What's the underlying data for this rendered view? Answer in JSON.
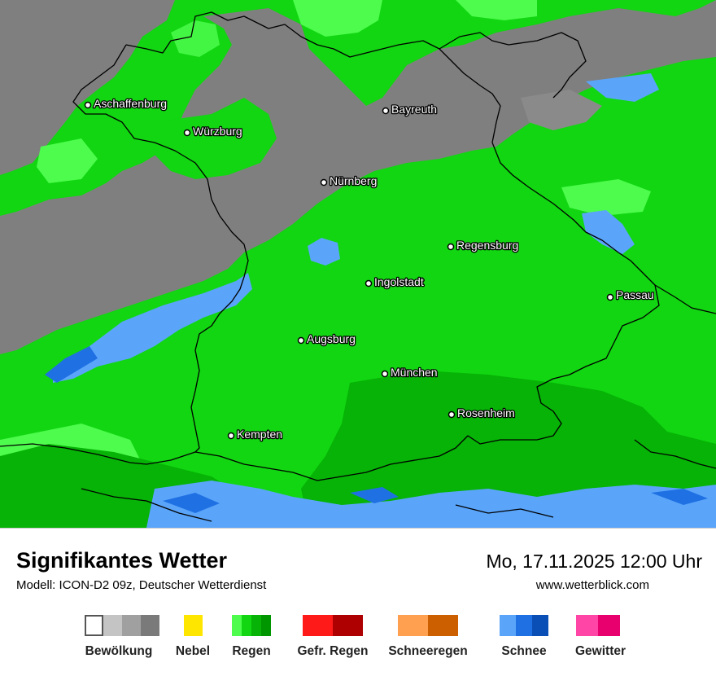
{
  "map": {
    "cities": [
      {
        "name": "Aschaffenburg"
      },
      {
        "name": "Würzburg"
      },
      {
        "name": "Bayreuth"
      },
      {
        "name": "Nürnberg"
      },
      {
        "name": "Regensburg"
      },
      {
        "name": "Ingolstadt"
      },
      {
        "name": "Passau"
      },
      {
        "name": "Augsburg"
      },
      {
        "name": "München"
      },
      {
        "name": "Rosenheim"
      },
      {
        "name": "Kempten"
      }
    ],
    "colors": {
      "cloud_dark": "#7f7f7f",
      "cloud_mid": "#8a8a8a",
      "rain_light": "#4dfc4d",
      "rain": "#11d611",
      "rain_dark": "#06b306",
      "snow_light": "#5aa5fa",
      "snow": "#1f70e3",
      "borders": "#000000"
    }
  },
  "header": {
    "title": "Signifikantes Wetter",
    "model": "Modell: ICON-D2 09z, Deutscher Wetterdienst",
    "datetime": "Mo, 17.11.2025 12:00 Uhr",
    "website": "www.wetterblick.com"
  },
  "legend": [
    {
      "label": "Bewölkung",
      "colors": [
        "#ffffff",
        "#c4c4c4",
        "#a0a0a0",
        "#7a7a7a"
      ]
    },
    {
      "label": "Nebel",
      "colors": [
        "#ffe600"
      ]
    },
    {
      "label": "Regen",
      "colors": [
        "#4dfc4d",
        "#11d611",
        "#06b306",
        "#009600"
      ]
    },
    {
      "label": "Gefr. Regen",
      "colors": [
        "#ff1a1a",
        "#ae0000"
      ]
    },
    {
      "label": "Schneeregen",
      "colors": [
        "#ffa050",
        "#cc6000"
      ]
    },
    {
      "label": "Schnee",
      "colors": [
        "#5aa5fa",
        "#1f70e3",
        "#0a4fb5"
      ]
    },
    {
      "label": "Gewitter",
      "colors": [
        "#ff45a5",
        "#e8006e"
      ]
    }
  ]
}
